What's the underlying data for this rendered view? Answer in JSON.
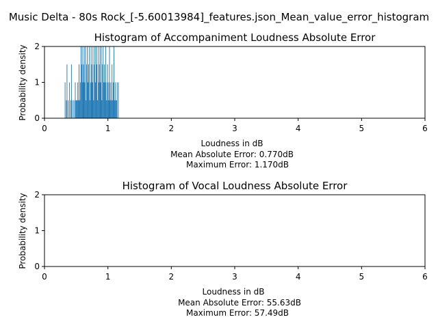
{
  "figure": {
    "suptitle": "Music Delta - 80s Rock_[-5.60013984]_features.json_Mean_value_error_histogram",
    "bar_color": "#1f77b4"
  },
  "chart_data": [
    {
      "type": "bar",
      "title": "Histogram of Accompaniment Loudness Absolute Error",
      "xlabel": "Loudness in dB",
      "xlabel_line2": "Mean Absolute Error: 0.770dB",
      "xlabel_line3": "Maximum Error: 1.170dB",
      "ylabel": "Probability density",
      "xlim": [
        0,
        6
      ],
      "ylim": [
        0,
        2
      ],
      "xticks": [
        "0",
        "1",
        "2",
        "3",
        "4",
        "5",
        "6"
      ],
      "yticks": [
        "0",
        "1",
        "2"
      ],
      "bin_width": 0.01,
      "bins": [
        [
          0.32,
          1.0
        ],
        [
          0.34,
          0.5
        ],
        [
          0.35,
          1.5
        ],
        [
          0.37,
          0.5
        ],
        [
          0.39,
          1.0
        ],
        [
          0.41,
          0.5
        ],
        [
          0.42,
          1.5
        ],
        [
          0.44,
          0.5
        ],
        [
          0.46,
          0.5
        ],
        [
          0.48,
          1.0
        ],
        [
          0.49,
          0.5
        ],
        [
          0.5,
          0.5
        ],
        [
          0.51,
          0.5
        ],
        [
          0.52,
          1.0
        ],
        [
          0.53,
          0.5
        ],
        [
          0.54,
          1.5
        ],
        [
          0.55,
          0.5
        ],
        [
          0.56,
          1.0
        ],
        [
          0.57,
          2.0
        ],
        [
          0.58,
          1.5
        ],
        [
          0.59,
          2.0
        ],
        [
          0.6,
          1.0
        ],
        [
          0.61,
          1.5
        ],
        [
          0.62,
          2.0
        ],
        [
          0.63,
          1.0
        ],
        [
          0.64,
          2.0
        ],
        [
          0.65,
          0.5
        ],
        [
          0.66,
          1.5
        ],
        [
          0.67,
          2.0
        ],
        [
          0.68,
          1.0
        ],
        [
          0.69,
          1.5
        ],
        [
          0.7,
          2.0
        ],
        [
          0.71,
          0.5
        ],
        [
          0.72,
          1.0
        ],
        [
          0.73,
          2.0
        ],
        [
          0.74,
          1.5
        ],
        [
          0.75,
          1.0
        ],
        [
          0.76,
          2.0
        ],
        [
          0.77,
          0.5
        ],
        [
          0.78,
          1.5
        ],
        [
          0.79,
          2.0
        ],
        [
          0.8,
          1.0
        ],
        [
          0.81,
          2.0
        ],
        [
          0.82,
          1.5
        ],
        [
          0.83,
          0.5
        ],
        [
          0.84,
          2.0
        ],
        [
          0.85,
          1.0
        ],
        [
          0.86,
          1.5
        ],
        [
          0.87,
          2.0
        ],
        [
          0.88,
          1.0
        ],
        [
          0.89,
          2.0
        ],
        [
          0.9,
          0.5
        ],
        [
          0.91,
          1.5
        ],
        [
          0.92,
          2.0
        ],
        [
          0.93,
          1.0
        ],
        [
          0.94,
          1.5
        ],
        [
          0.95,
          1.0
        ],
        [
          0.96,
          2.0
        ],
        [
          0.97,
          0.5
        ],
        [
          0.98,
          1.0
        ],
        [
          0.99,
          1.5
        ],
        [
          1.0,
          0.5
        ],
        [
          1.01,
          1.0
        ],
        [
          1.02,
          2.0
        ],
        [
          1.03,
          0.5
        ],
        [
          1.04,
          1.0
        ],
        [
          1.05,
          0.5
        ],
        [
          1.06,
          1.5
        ],
        [
          1.07,
          0.5
        ],
        [
          1.08,
          1.0
        ],
        [
          1.09,
          2.0
        ],
        [
          1.1,
          0.5
        ],
        [
          1.11,
          1.0
        ],
        [
          1.12,
          0.5
        ],
        [
          1.13,
          0.5
        ],
        [
          1.14,
          1.0
        ],
        [
          1.16,
          1.0
        ]
      ]
    },
    {
      "type": "bar",
      "title": "Histogram of Vocal Loudness Absolute Error",
      "xlabel": "Loudness in dB",
      "xlabel_line2": "Mean Absolute Error: 55.63dB",
      "xlabel_line3": "Maximum Error: 57.49dB",
      "ylabel": "Probability density",
      "xlim": [
        0,
        6
      ],
      "ylim": [
        0,
        2
      ],
      "xticks": [
        "0",
        "1",
        "2",
        "3",
        "4",
        "5",
        "6"
      ],
      "yticks": [
        "0",
        "1",
        "2"
      ],
      "bin_width": 0.01,
      "bins": []
    }
  ]
}
